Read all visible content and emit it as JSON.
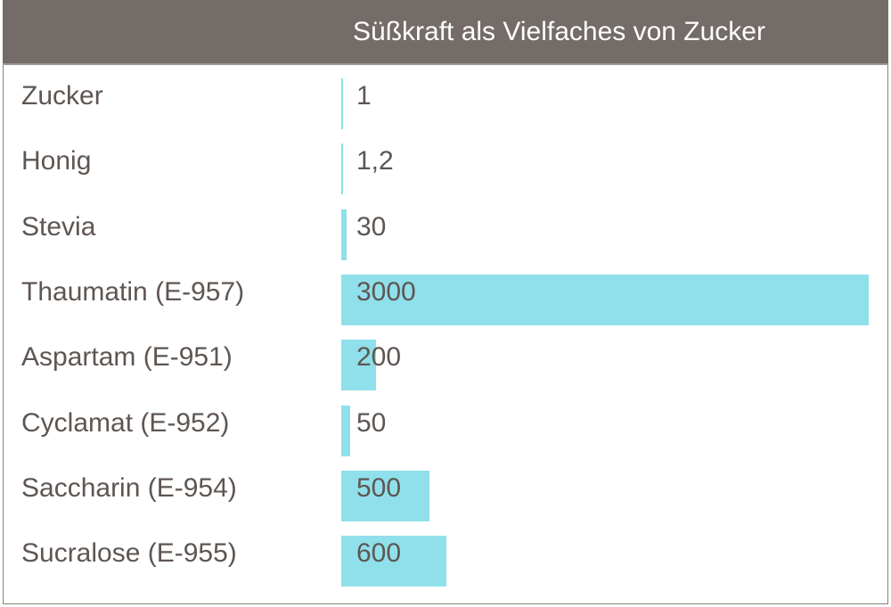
{
  "chart_data": {
    "type": "bar",
    "orientation": "horizontal",
    "title": "Süßkraft als Vielfaches von Zucker",
    "categories": [
      "Zucker",
      "Honig",
      "Stevia",
      "Thaumatin (E-957)",
      "Aspartam (E-951)",
      "Cyclamat (E-952)",
      "Saccharin (E-954)",
      "Sucralose (E-955)"
    ],
    "values": [
      1,
      1.2,
      30,
      3000,
      200,
      50,
      500,
      600
    ],
    "value_labels": [
      "1",
      "1,2",
      "30",
      "3000",
      "200",
      "50",
      "500",
      "600"
    ],
    "xlim": [
      0,
      3000
    ],
    "grid": false,
    "colors": {
      "bar": "#8fe0ea",
      "header": "#746c68",
      "text": "#5e5652"
    }
  }
}
